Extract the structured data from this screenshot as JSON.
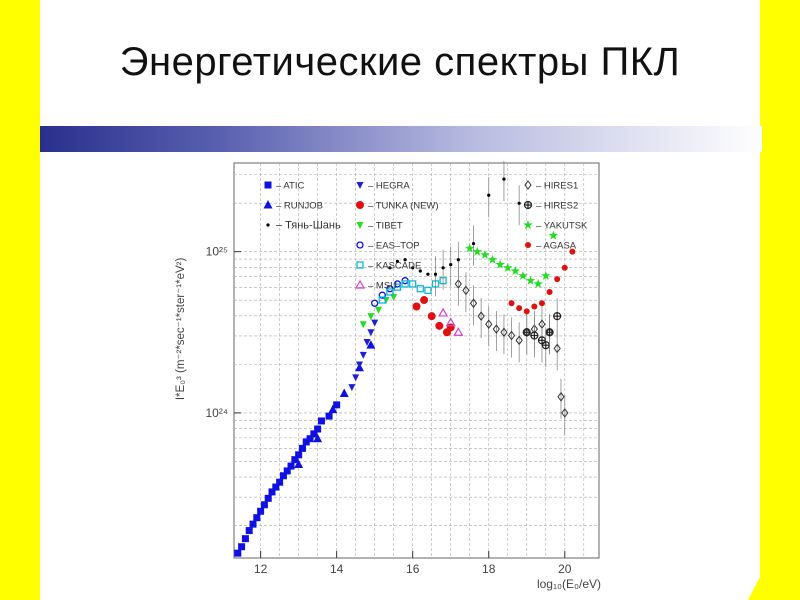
{
  "slide": {
    "title": "Энергетические спектры ПКЛ",
    "colors": {
      "left_stripe": "#ffff00",
      "right_stripe": "#ffff00",
      "bar_start": "#2a2f8c"
    }
  },
  "chart_data": {
    "type": "scatter",
    "title": "",
    "xlabel": "log₁₀(E₀/eV)",
    "ylabel": "I*E₀³ (m⁻²*sec⁻¹*ster⁻¹*eV²)",
    "xlim": [
      11.3,
      20.9
    ],
    "ylim_log10": [
      23.1,
      25.55
    ],
    "x_ticks": [
      "12",
      "14",
      "16",
      "18",
      "20"
    ],
    "y_ticks": [
      "10²⁴",
      "10²⁵"
    ],
    "grid": true,
    "legend_placement": "top",
    "series": [
      {
        "name": "ATIC",
        "marker": "square",
        "color": "#1010e0",
        "x": [
          11.4,
          11.5,
          11.6,
          11.7,
          11.8,
          11.9,
          12.0,
          12.1,
          12.2,
          12.3,
          12.4,
          12.5,
          12.6,
          12.7,
          12.8,
          12.9,
          13.0,
          13.1,
          13.2,
          13.3,
          13.4,
          13.5,
          13.6,
          13.8,
          14.0
        ],
        "log10y": [
          23.13,
          23.17,
          23.22,
          23.27,
          23.31,
          23.35,
          23.39,
          23.43,
          23.47,
          23.51,
          23.54,
          23.57,
          23.61,
          23.64,
          23.67,
          23.71,
          23.74,
          23.78,
          23.82,
          23.84,
          23.87,
          23.9,
          23.95,
          23.98,
          24.05
        ]
      },
      {
        "name": "RUNJOB",
        "marker": "triangle",
        "color": "#1010e0",
        "x": [
          13.0,
          13.5,
          13.9,
          14.2,
          14.6,
          14.9
        ],
        "log10y": [
          23.68,
          23.84,
          24.02,
          24.12,
          24.28,
          24.42
        ]
      },
      {
        "name": "HEGRA",
        "marker": "triangle-down",
        "color": "#2020d0",
        "x": [
          14.4,
          14.5,
          14.6,
          14.7,
          14.8,
          14.9,
          15.0
        ],
        "log10y": [
          24.16,
          24.22,
          24.3,
          24.36,
          24.44,
          24.5,
          24.56
        ]
      },
      {
        "name": "TUNKA (NEW)",
        "marker": "circle",
        "color": "#e01010",
        "x": [
          16.1,
          16.3,
          16.5,
          16.7,
          16.9,
          17.0
        ],
        "log10y": [
          24.66,
          24.7,
          24.6,
          24.54,
          24.5,
          24.53
        ]
      },
      {
        "name": "TIBET",
        "marker": "triangle-down",
        "color": "#22dd22",
        "x": [
          14.7,
          14.9,
          15.1,
          15.3,
          15.5
        ],
        "log10y": [
          24.55,
          24.6,
          24.64,
          24.7,
          24.72
        ]
      },
      {
        "name": "EAS-TOP",
        "marker": "circle-open",
        "color": "#1010e0",
        "x": [
          15.0,
          15.2,
          15.4,
          15.6,
          15.8
        ],
        "log10y": [
          24.68,
          24.73,
          24.77,
          24.8,
          24.82
        ]
      },
      {
        "name": "KASCADE",
        "marker": "square-open",
        "color": "#10b8d8",
        "x": [
          15.2,
          15.4,
          15.6,
          15.8,
          16.0,
          16.2,
          16.4,
          16.6,
          16.8
        ],
        "log10y": [
          24.7,
          24.75,
          24.78,
          24.8,
          24.8,
          24.77,
          24.76,
          24.8,
          24.82
        ]
      },
      {
        "name": "MSU",
        "marker": "triangle-open",
        "color": "#d040d0",
        "x": [
          16.8,
          17.0,
          17.2
        ],
        "log10y": [
          24.62,
          24.56,
          24.5
        ]
      },
      {
        "name": "HIRES1",
        "marker": "diamond-open",
        "color": "#333333",
        "x": [
          17.2,
          17.4,
          17.6,
          17.8,
          18.0,
          18.2,
          18.4,
          18.6,
          18.8,
          19.0,
          19.2,
          19.4,
          19.6,
          19.8,
          19.9,
          20.0
        ],
        "log10y": [
          24.8,
          24.76,
          24.68,
          24.6,
          24.55,
          24.52,
          24.5,
          24.48,
          24.45,
          24.5,
          24.52,
          24.55,
          24.5,
          24.4,
          24.1,
          24.0
        ]
      },
      {
        "name": "HIRES2",
        "marker": "crossed-circle",
        "color": "#222222",
        "x": [
          19.0,
          19.2,
          19.4,
          19.5,
          19.6,
          19.8
        ],
        "log10y": [
          24.5,
          24.48,
          24.45,
          24.42,
          24.5,
          24.6
        ]
      },
      {
        "name": "YAKUTSK",
        "marker": "star",
        "color": "#22dd22",
        "x": [
          17.5,
          17.7,
          17.9,
          18.1,
          18.3,
          18.5,
          18.7,
          18.9,
          19.1,
          19.3,
          19.5,
          19.7
        ],
        "log10y": [
          25.02,
          25.0,
          24.98,
          24.95,
          24.92,
          24.9,
          24.88,
          24.85,
          24.82,
          24.8,
          24.85,
          25.1
        ]
      },
      {
        "name": "AGASA",
        "marker": "dot",
        "color": "#e01010",
        "x": [
          18.6,
          18.8,
          19.0,
          19.2,
          19.4,
          19.6,
          19.8,
          20.0,
          20.2
        ],
        "log10y": [
          24.68,
          24.65,
          24.63,
          24.66,
          24.68,
          24.75,
          24.83,
          24.9,
          25.0
        ]
      },
      {
        "name": "Тянь-Шань",
        "marker": "small-dot",
        "color": "#000000",
        "x": [
          15.4,
          15.6,
          15.8,
          16.0,
          16.2,
          16.4,
          16.6,
          16.8,
          17.0,
          17.2,
          17.6,
          18.0,
          18.4,
          18.8
        ],
        "log10y": [
          24.9,
          24.94,
          24.95,
          24.9,
          24.88,
          24.86,
          24.86,
          24.9,
          24.92,
          24.95,
          25.05,
          25.35,
          25.45,
          25.3
        ]
      }
    ],
    "legend": [
      {
        "label": "– ATIC",
        "marker": "square",
        "color": "#1010e0",
        "col": 0,
        "row": 0
      },
      {
        "label": "– RUNJOB",
        "marker": "triangle",
        "color": "#1010e0",
        "col": 0,
        "row": 1
      },
      {
        "label": "– HEGRA",
        "marker": "triangle-down",
        "color": "#2020d0",
        "col": 1,
        "row": 0
      },
      {
        "label": "– TUNKA (NEW)",
        "marker": "circle",
        "color": "#e01010",
        "col": 1,
        "row": 1
      },
      {
        "label": "– TIBET",
        "marker": "triangle-down",
        "color": "#22dd22",
        "col": 1,
        "row": 2
      },
      {
        "label": "– EAS–TOP",
        "marker": "circle-open",
        "color": "#1010e0",
        "col": 1,
        "row": 3
      },
      {
        "label": "– KASCADE",
        "marker": "square-open",
        "color": "#10b8d8",
        "col": 1,
        "row": 4
      },
      {
        "label": "– MSU",
        "marker": "triangle-open",
        "color": "#d040d0",
        "col": 1,
        "row": 5
      },
      {
        "label": "– HIRES1",
        "marker": "diamond-open",
        "color": "#333333",
        "col": 2,
        "row": 0
      },
      {
        "label": "– HIRES2",
        "marker": "crossed-circle",
        "color": "#222222",
        "col": 2,
        "row": 1
      },
      {
        "label": "– YAKUTSK",
        "marker": "star",
        "color": "#22dd22",
        "col": 2,
        "row": 2
      },
      {
        "label": "– AGASA",
        "marker": "dot",
        "color": "#e01010",
        "col": 2,
        "row": 3
      },
      {
        "label": "– Тянь-Шань",
        "marker": "small-dot",
        "color": "#000000",
        "col": 0,
        "row": 2
      }
    ]
  }
}
